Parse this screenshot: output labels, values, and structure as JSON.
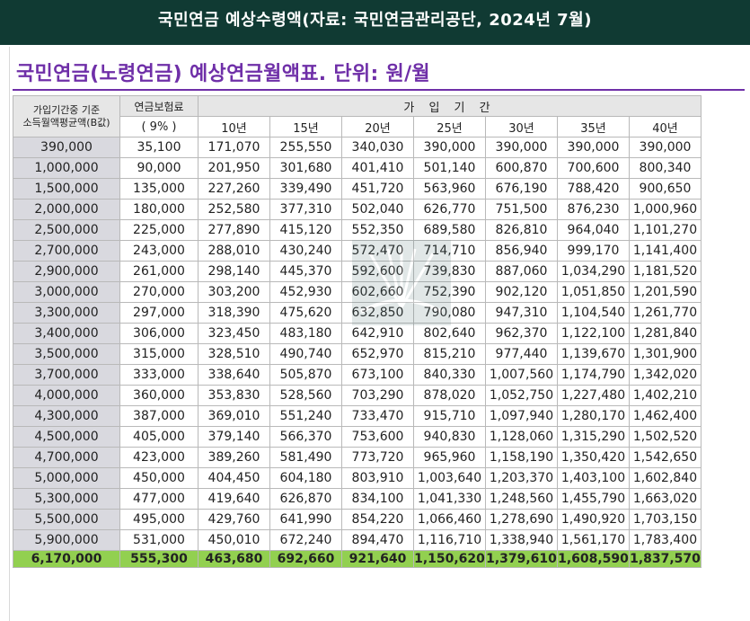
{
  "header": {
    "title": "국민연금 예상수령액(자료: 국민연금관리공단, 2024년 7월)"
  },
  "subtitle": "국민연금(노령연금) 예상연금월액표. 단위: 원/월",
  "table": {
    "col0_header_line1": "가입기간중 기준",
    "col0_header_line2": "소득월액평균액(B값)",
    "col1_header": "연금보험료",
    "col1_subheader": "( 9% )",
    "period_header": "가 입 기 간",
    "years": [
      "10년",
      "15년",
      "20년",
      "25년",
      "30년",
      "35년",
      "40년"
    ],
    "rows": [
      [
        "390,000",
        "35,100",
        "171,070",
        "255,550",
        "340,030",
        "390,000",
        "390,000",
        "390,000",
        "390,000"
      ],
      [
        "1,000,000",
        "90,000",
        "201,950",
        "301,680",
        "401,410",
        "501,140",
        "600,870",
        "700,600",
        "800,340"
      ],
      [
        "1,500,000",
        "135,000",
        "227,260",
        "339,490",
        "451,720",
        "563,960",
        "676,190",
        "788,420",
        "900,650"
      ],
      [
        "2,000,000",
        "180,000",
        "252,580",
        "377,310",
        "502,040",
        "626,770",
        "751,500",
        "876,230",
        "1,000,960"
      ],
      [
        "2,500,000",
        "225,000",
        "277,890",
        "415,120",
        "552,350",
        "689,580",
        "826,810",
        "964,040",
        "1,101,270"
      ],
      [
        "2,700,000",
        "243,000",
        "288,010",
        "430,240",
        "572,470",
        "714,710",
        "856,940",
        "999,170",
        "1,141,400"
      ],
      [
        "2,900,000",
        "261,000",
        "298,140",
        "445,370",
        "592,600",
        "739,830",
        "887,060",
        "1,034,290",
        "1,181,520"
      ],
      [
        "3,000,000",
        "270,000",
        "303,200",
        "452,930",
        "602,660",
        "752,390",
        "902,120",
        "1,051,850",
        "1,201,590"
      ],
      [
        "3,300,000",
        "297,000",
        "318,390",
        "475,620",
        "632,850",
        "790,080",
        "947,310",
        "1,104,540",
        "1,261,770"
      ],
      [
        "3,400,000",
        "306,000",
        "323,450",
        "483,180",
        "642,910",
        "802,640",
        "962,370",
        "1,122,100",
        "1,281,840"
      ],
      [
        "3,500,000",
        "315,000",
        "328,510",
        "490,740",
        "652,970",
        "815,210",
        "977,440",
        "1,139,670",
        "1,301,900"
      ],
      [
        "3,700,000",
        "333,000",
        "338,640",
        "505,870",
        "673,100",
        "840,330",
        "1,007,560",
        "1,174,790",
        "1,342,020"
      ],
      [
        "4,000,000",
        "360,000",
        "353,830",
        "528,560",
        "703,290",
        "878,020",
        "1,052,750",
        "1,227,480",
        "1,402,210"
      ],
      [
        "4,300,000",
        "387,000",
        "369,010",
        "551,240",
        "733,470",
        "915,710",
        "1,097,940",
        "1,280,170",
        "1,462,400"
      ],
      [
        "4,500,000",
        "405,000",
        "379,140",
        "566,370",
        "753,600",
        "940,830",
        "1,128,060",
        "1,315,290",
        "1,502,520"
      ],
      [
        "4,700,000",
        "423,000",
        "389,260",
        "581,490",
        "773,720",
        "965,960",
        "1,158,190",
        "1,350,420",
        "1,542,650"
      ],
      [
        "5,000,000",
        "450,000",
        "404,450",
        "604,180",
        "803,910",
        "1,003,640",
        "1,203,370",
        "1,403,100",
        "1,602,840"
      ],
      [
        "5,300,000",
        "477,000",
        "419,640",
        "626,870",
        "834,100",
        "1,041,330",
        "1,248,560",
        "1,455,790",
        "1,663,020"
      ],
      [
        "5,500,000",
        "495,000",
        "429,760",
        "641,990",
        "854,220",
        "1,066,460",
        "1,278,690",
        "1,490,920",
        "1,703,150"
      ],
      [
        "5,900,000",
        "531,000",
        "450,010",
        "672,240",
        "894,470",
        "1,116,710",
        "1,338,940",
        "1,561,170",
        "1,783,400"
      ],
      [
        "6,170,000",
        "555,300",
        "463,680",
        "692,660",
        "921,640",
        "1,150,620",
        "1,379,610",
        "1,608,590",
        "1,837,570"
      ]
    ],
    "highlight_row_index": 20
  },
  "colors": {
    "header_bg": "#103a33",
    "subtitle_purple": "#6f2fa8",
    "highlight_green": "#92d050",
    "income_col_bg": "#d9d9df"
  }
}
